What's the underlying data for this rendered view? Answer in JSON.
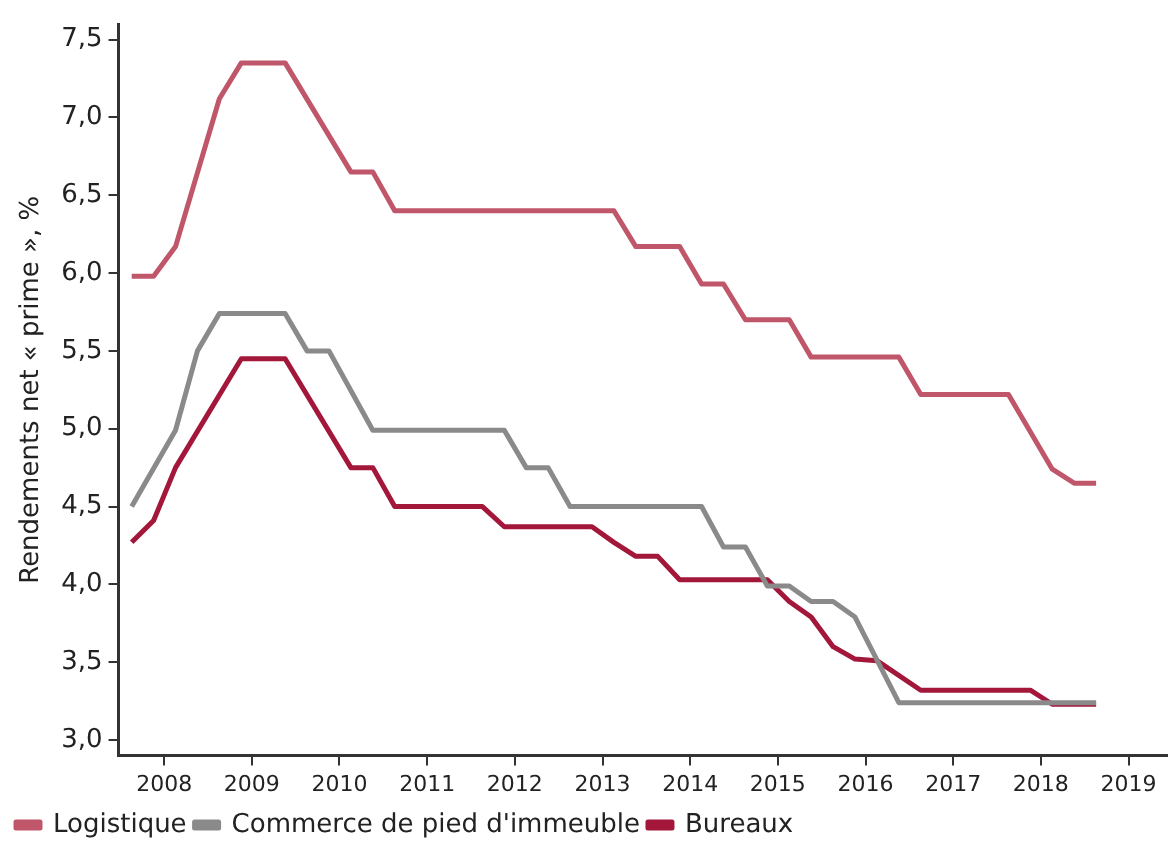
{
  "chart_data": {
    "type": "line",
    "ylabel": "Rendements net « prime », %",
    "xlim": [
      2007.98,
      2019.95
    ],
    "ylim": [
      2.9,
      7.6
    ],
    "xticks": [
      {
        "value": 2008.5,
        "label": "2008"
      },
      {
        "value": 2009.5,
        "label": "2009"
      },
      {
        "value": 2010.5,
        "label": "2010"
      },
      {
        "value": 2011.5,
        "label": "2011"
      },
      {
        "value": 2012.5,
        "label": "2012"
      },
      {
        "value": 2013.5,
        "label": "2013"
      },
      {
        "value": 2014.5,
        "label": "2014"
      },
      {
        "value": 2015.5,
        "label": "2015"
      },
      {
        "value": 2016.5,
        "label": "2016"
      },
      {
        "value": 2017.5,
        "label": "2017"
      },
      {
        "value": 2018.5,
        "label": "2018"
      },
      {
        "value": 2019.5,
        "label": "2019"
      }
    ],
    "yticks": [
      {
        "value": 3,
        "label": "3,0"
      },
      {
        "value": 3.5,
        "label": "3,5"
      },
      {
        "value": 4,
        "label": "4,0"
      },
      {
        "value": 4.5,
        "label": "4,5"
      },
      {
        "value": 5,
        "label": "5,0"
      },
      {
        "value": 5.5,
        "label": "5,5"
      },
      {
        "value": 6,
        "label": "6,0"
      },
      {
        "value": 6.5,
        "label": "6,5"
      },
      {
        "value": 7,
        "label": "7,0"
      },
      {
        "value": 7.5,
        "label": "7,5"
      }
    ],
    "grid": false,
    "legend": "bottom",
    "marker": "none",
    "line_style": "solid",
    "series": [
      {
        "name": "Logistique",
        "color": "#c0566a",
        "x": [
          2008.13,
          2008.38,
          2008.63,
          2009.13,
          2009.38,
          2009.88,
          2010.63,
          2010.88,
          2011.13,
          2013.63,
          2013.88,
          2014.38,
          2014.63,
          2014.88,
          2015.13,
          2015.63,
          2015.88,
          2016.88,
          2017.13,
          2018.13,
          2018.63,
          2018.88,
          2019.13
        ],
        "values": [
          5.98,
          5.98,
          6.17,
          7.12,
          7.35,
          7.35,
          6.65,
          6.65,
          6.4,
          6.4,
          6.17,
          6.17,
          5.93,
          5.93,
          5.7,
          5.7,
          5.46,
          5.46,
          5.22,
          5.22,
          4.74,
          4.65,
          4.65
        ]
      },
      {
        "name": "Commerce de pied d'immeuble",
        "color": "#8a8a8a",
        "x": [
          2008.13,
          2008.63,
          2008.88,
          2009.13,
          2009.88,
          2010.13,
          2010.38,
          2010.88,
          2012.38,
          2012.63,
          2012.88,
          2013.13,
          2014.63,
          2014.88,
          2015.13,
          2015.38,
          2015.63,
          2015.88,
          2016.13,
          2016.38,
          2016.88,
          2019.13
        ],
        "values": [
          4.5,
          4.99,
          5.5,
          5.74,
          5.74,
          5.5,
          5.5,
          4.99,
          4.99,
          4.75,
          4.75,
          4.5,
          4.5,
          4.24,
          4.24,
          3.99,
          3.99,
          3.89,
          3.89,
          3.79,
          3.24,
          3.24
        ]
      },
      {
        "name": "Bureaux",
        "color": "#a3173a",
        "x": [
          2008.13,
          2008.38,
          2008.63,
          2009.38,
          2009.88,
          2010.63,
          2010.88,
          2011.13,
          2012.13,
          2012.38,
          2013.38,
          2013.63,
          2013.88,
          2014.13,
          2014.38,
          2015.38,
          2015.63,
          2015.88,
          2016.13,
          2016.38,
          2016.63,
          2017.13,
          2018.38,
          2018.63,
          2019.13
        ],
        "values": [
          4.27,
          4.41,
          4.75,
          5.45,
          5.45,
          4.75,
          4.75,
          4.5,
          4.5,
          4.37,
          4.37,
          4.27,
          4.18,
          4.18,
          4.03,
          4.03,
          3.89,
          3.79,
          3.6,
          3.52,
          3.51,
          3.32,
          3.32,
          3.23,
          3.23
        ]
      }
    ]
  }
}
